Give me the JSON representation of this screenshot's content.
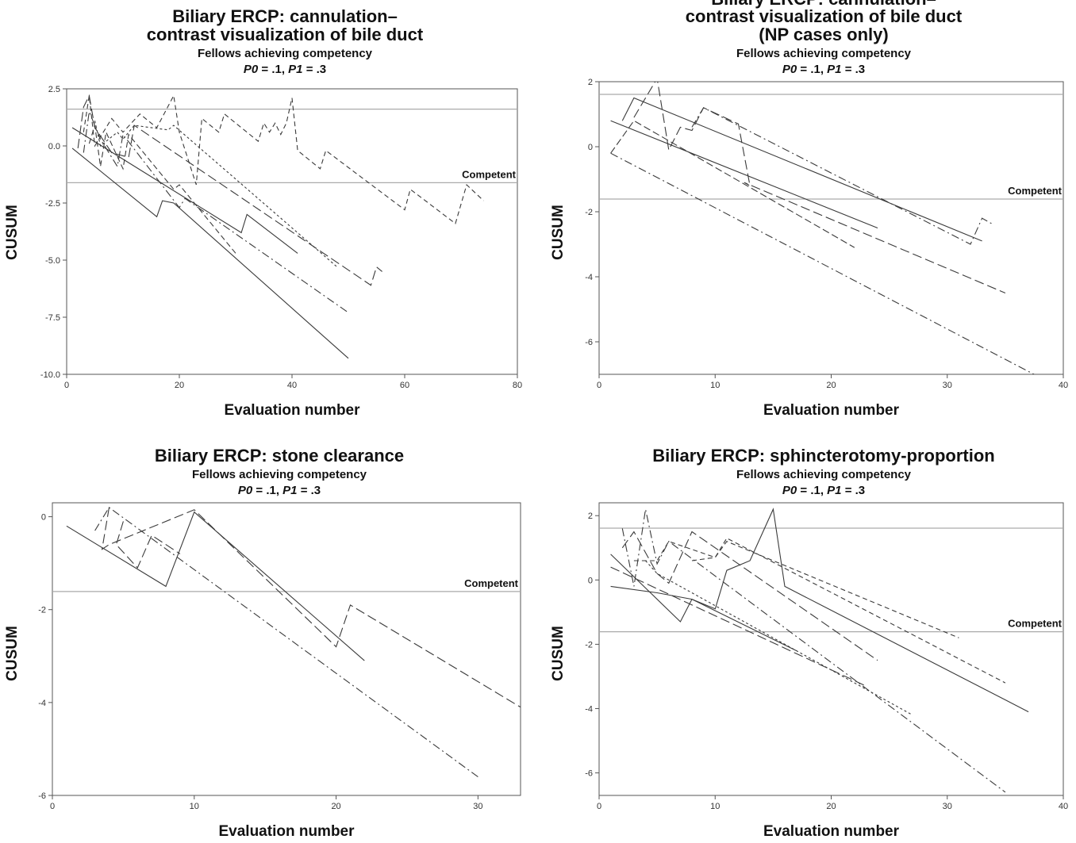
{
  "common": {
    "xlabel": "Evaluation number",
    "ylabel": "CUSUM",
    "subtitle": "Fellows achieving competency",
    "p0_label": "P0",
    "p0_value": " = .1, ",
    "p1_label": "P1",
    "p1_value": " = .3",
    "competent_label": "Competent"
  },
  "chart_data": [
    {
      "type": "line",
      "title_lines": [
        "Biliary ERCP: cannulation–",
        "contrast visualization of bile duct"
      ],
      "xlim": [
        0,
        80
      ],
      "ylim": [
        -10,
        2.5
      ],
      "xticks": [
        0,
        20,
        40,
        60,
        80
      ],
      "yticks": [
        2.5,
        0.0,
        -2.5,
        -5.0,
        -7.5,
        -10.0
      ],
      "ytick_labels": [
        "2.5",
        "0.0",
        "-2.5",
        "-5.0",
        "-7.5",
        "-10.0"
      ],
      "hlines": [
        1.61,
        -1.61
      ],
      "competent_y": -1.61,
      "series": [
        {
          "dash": "",
          "points": [
            [
              1,
              -0.1
            ],
            [
              16,
              -3.1
            ],
            [
              17,
              -2.4
            ],
            [
              19,
              -2.5
            ],
            [
              50,
              -9.3
            ]
          ]
        },
        {
          "dash": "",
          "points": [
            [
              1,
              0.8
            ],
            [
              31,
              -3.8
            ],
            [
              32,
              -3.0
            ],
            [
              41,
              -4.7
            ]
          ]
        },
        {
          "dash": "7 4",
          "points": [
            [
              4,
              0.1
            ],
            [
              5,
              0.9
            ],
            [
              6,
              -0.9
            ],
            [
              7,
              0.6
            ],
            [
              10,
              -1.0
            ],
            [
              11,
              0.5
            ],
            [
              19,
              -1.9
            ],
            [
              20,
              -1.7
            ],
            [
              30,
              -4.7
            ]
          ]
        },
        {
          "dash": "10 4 2 4",
          "points": [
            [
              3,
              -0.3
            ],
            [
              4,
              1.5
            ],
            [
              6,
              0.3
            ],
            [
              9,
              -0.9
            ],
            [
              10,
              0.5
            ],
            [
              20,
              -2.7
            ],
            [
              21,
              -2.3
            ],
            [
              50,
              -7.3
            ]
          ]
        },
        {
          "dash": "12 5",
          "points": [
            [
              2,
              -0.1
            ],
            [
              3,
              1.7
            ],
            [
              4,
              2.2
            ],
            [
              5,
              0.8
            ],
            [
              8,
              -0.3
            ],
            [
              11,
              -0.5
            ],
            [
              12,
              0.9
            ],
            [
              54,
              -6.1
            ],
            [
              55,
              -5.3
            ],
            [
              56,
              -5.5
            ]
          ]
        },
        {
          "dash": "6 4",
          "points": [
            [
              3,
              0.6
            ],
            [
              4,
              2.2
            ],
            [
              5,
              0.0
            ],
            [
              8,
              1.2
            ],
            [
              10,
              0.6
            ],
            [
              13,
              1.4
            ],
            [
              16,
              0.8
            ],
            [
              19,
              2.2
            ],
            [
              20,
              0.6
            ],
            [
              23,
              -1.7
            ],
            [
              24,
              1.2
            ],
            [
              27,
              0.6
            ],
            [
              28,
              1.4
            ],
            [
              34,
              0.2
            ],
            [
              35,
              1.0
            ],
            [
              36,
              0.6
            ],
            [
              37,
              1.0
            ],
            [
              38,
              0.5
            ],
            [
              39,
              1.0
            ],
            [
              40,
              2.1
            ],
            [
              41,
              -0.2
            ],
            [
              45,
              -1.0
            ],
            [
              46,
              -0.2
            ],
            [
              60,
              -2.8
            ],
            [
              61,
              -1.9
            ],
            [
              69,
              -3.4
            ],
            [
              71,
              -1.7
            ],
            [
              74,
              -2.4
            ]
          ]
        },
        {
          "dash": "3 3",
          "points": [
            [
              5,
              1.1
            ],
            [
              6,
              0.0
            ],
            [
              9,
              0.6
            ],
            [
              10,
              0.3
            ],
            [
              12,
              0.9
            ],
            [
              18,
              0.7
            ],
            [
              19,
              0.9
            ],
            [
              48,
              -5.3
            ]
          ]
        }
      ]
    },
    {
      "type": "line",
      "title_lines": [
        "Biliary ERCP: cannulation–",
        "contrast visualization of bile duct",
        "(NP cases only)"
      ],
      "xlim": [
        0,
        40
      ],
      "ylim": [
        -7,
        2
      ],
      "xticks": [
        0,
        10,
        20,
        30,
        40
      ],
      "yticks": [
        2,
        0,
        -2,
        -4,
        -6
      ],
      "ytick_labels": [
        "2",
        "0",
        "-2",
        "-4",
        "-6"
      ],
      "hlines": [
        1.61,
        -1.61
      ],
      "competent_y": -1.61,
      "series": [
        {
          "dash": "",
          "points": [
            [
              1,
              0.8
            ],
            [
              24,
              -2.5
            ]
          ]
        },
        {
          "dash": "",
          "points": [
            [
              2,
              0.8
            ],
            [
              3,
              1.5
            ],
            [
              33,
              -2.9
            ]
          ]
        },
        {
          "dash": "9 4",
          "points": [
            [
              1,
              -0.2
            ],
            [
              3,
              0.8
            ],
            [
              22,
              -3.1
            ]
          ]
        },
        {
          "dash": "10 4 2 4",
          "points": [
            [
              1,
              -0.2
            ],
            [
              38,
              -7.1
            ]
          ]
        },
        {
          "dash": "12 5",
          "points": [
            [
              3,
              0.9
            ],
            [
              5,
              2.1
            ],
            [
              6,
              -0.1
            ],
            [
              7,
              0.6
            ],
            [
              8,
              0.5
            ],
            [
              9,
              1.2
            ],
            [
              12,
              0.7
            ],
            [
              13,
              -1.2
            ],
            [
              12.5,
              -1.1
            ],
            [
              35,
              -4.5
            ]
          ]
        },
        {
          "dash": "10 4 2 4",
          "points": [
            [
              8,
              0.6
            ],
            [
              9,
              1.2
            ],
            [
              32,
              -3.0
            ],
            [
              33,
              -2.2
            ],
            [
              34,
              -2.4
            ]
          ]
        }
      ]
    },
    {
      "type": "line",
      "title_lines": [
        "Biliary ERCP: stone clearance"
      ],
      "xlim": [
        0,
        33
      ],
      "ylim": [
        -6,
        0.3
      ],
      "xticks": [
        0,
        10,
        20,
        30
      ],
      "yticks": [
        0,
        -2,
        -4,
        -6
      ],
      "ytick_labels": [
        "0",
        "-2",
        "-4",
        "-6"
      ],
      "hlines": [
        -1.61
      ],
      "competent_y": -1.61,
      "series": [
        {
          "dash": "",
          "points": [
            [
              1,
              -0.2
            ],
            [
              8,
              -1.5
            ],
            [
              10,
              0.1
            ],
            [
              22,
              -3.1
            ]
          ]
        },
        {
          "dash": "12 5",
          "points": [
            [
              4,
              0.2
            ],
            [
              3.5,
              -0.7
            ],
            [
              4,
              -0.6
            ],
            [
              10,
              0.15
            ],
            [
              20,
              -2.8
            ],
            [
              21,
              -1.9
            ],
            [
              33,
              -4.1
            ]
          ]
        },
        {
          "dash": "10 4 2 4",
          "points": [
            [
              3,
              -0.3
            ],
            [
              4,
              0.2
            ],
            [
              30,
              -5.6
            ]
          ]
        },
        {
          "dash": "12 5",
          "points": [
            [
              5,
              -0.1
            ],
            [
              4.5,
              -0.6
            ],
            [
              6,
              -1.1
            ],
            [
              7,
              -0.4
            ],
            [
              9,
              -0.8
            ]
          ]
        }
      ]
    },
    {
      "type": "line",
      "title_lines": [
        "Biliary ERCP: sphincterotomy-proportion"
      ],
      "xlim": [
        0,
        40
      ],
      "ylim": [
        -6.7,
        2.4
      ],
      "xticks": [
        0,
        10,
        20,
        30,
        40
      ],
      "yticks": [
        2,
        0,
        -2,
        -4,
        -6
      ],
      "ytick_labels": [
        "2",
        "0",
        "-2",
        "-4",
        "-6"
      ],
      "hlines": [
        1.61,
        -1.61
      ],
      "competent_y": -1.61,
      "series": [
        {
          "dash": "",
          "points": [
            [
              1,
              -0.2
            ],
            [
              5,
              -0.4
            ],
            [
              8,
              -0.6
            ],
            [
              10,
              -0.9
            ],
            [
              11,
              0.3
            ],
            [
              13,
              0.6
            ],
            [
              15,
              2.2
            ],
            [
              16,
              -0.2
            ],
            [
              37,
              -4.1
            ]
          ]
        },
        {
          "dash": "",
          "points": [
            [
              1,
              0.8
            ],
            [
              7,
              -1.3
            ],
            [
              8,
              -0.6
            ],
            [
              17,
              -2.2
            ]
          ]
        },
        {
          "dash": "10 4 2 4",
          "points": [
            [
              2,
              1.6
            ],
            [
              3,
              -0.2
            ],
            [
              4,
              2.2
            ],
            [
              5,
              0.5
            ],
            [
              6,
              1.2
            ],
            [
              35,
              -6.6
            ]
          ]
        },
        {
          "dash": "12 5",
          "points": [
            [
              2,
              1.0
            ],
            [
              3,
              1.5
            ],
            [
              5,
              0.2
            ],
            [
              6,
              -0.1
            ],
            [
              8,
              1.5
            ],
            [
              24,
              -2.5
            ]
          ]
        },
        {
          "dash": "6 4",
          "points": [
            [
              3,
              0.6
            ],
            [
              5,
              0.6
            ],
            [
              6,
              1.2
            ],
            [
              10,
              0.7
            ],
            [
              11,
              1.3
            ],
            [
              35,
              -3.2
            ]
          ]
        },
        {
          "dash": "6 4",
          "points": [
            [
              8,
              0.6
            ],
            [
              10,
              0.7
            ],
            [
              11,
              1.2
            ],
            [
              31,
              -1.8
            ]
          ]
        },
        {
          "dash": "3 3",
          "points": [
            [
              4,
              0.6
            ],
            [
              5,
              0.2
            ],
            [
              27,
              -4.2
            ]
          ]
        },
        {
          "dash": "12 5",
          "points": [
            [
              1,
              0.4
            ],
            [
              23,
              -3.3
            ]
          ]
        }
      ]
    }
  ]
}
